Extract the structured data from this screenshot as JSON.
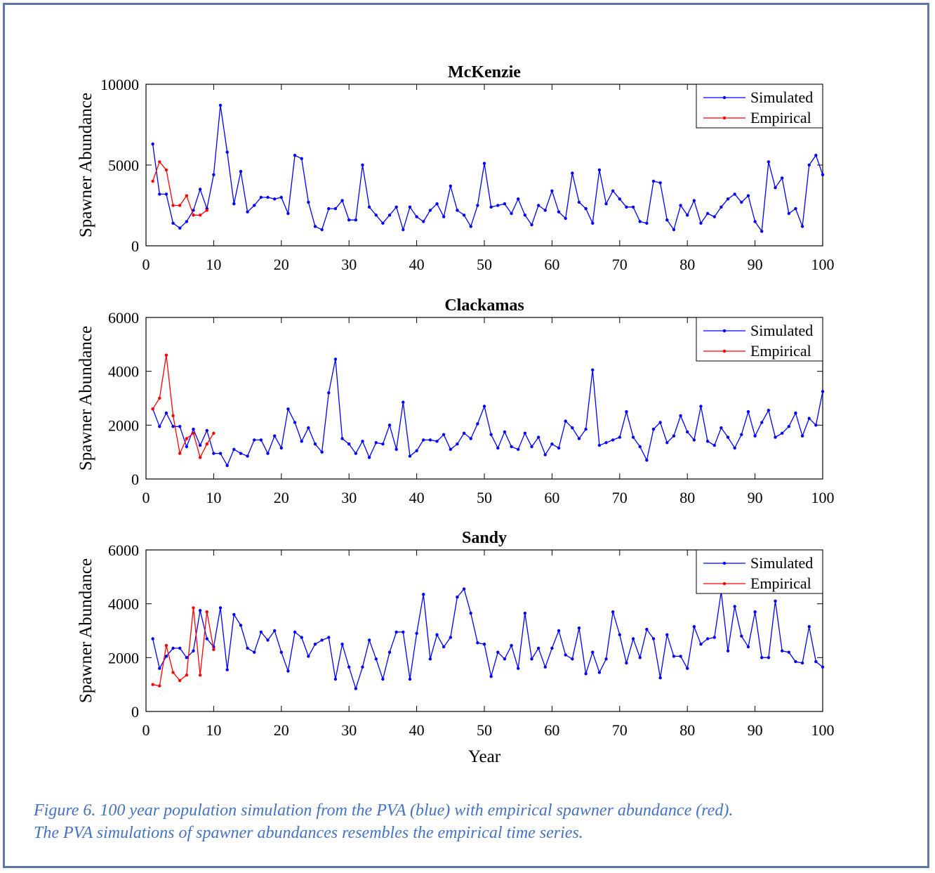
{
  "caption": {
    "line1": "Figure 6.  100 year population simulation from the PVA (blue) with empirical spawner abundance (red).",
    "line2": "The PVA simulations of spawner abundances resembles the empirical time series."
  },
  "colors": {
    "simulated": "#0000ff",
    "empirical": "#ff0000",
    "frame": "#5a76aa",
    "caption": "#4472c4"
  },
  "chart_data": [
    {
      "type": "line",
      "title": "McKenzie",
      "ylabel": "Spawner Abundance",
      "xlabel": "",
      "xlim": [
        0,
        100
      ],
      "ylim": [
        0,
        10000
      ],
      "xticks": [
        0,
        10,
        20,
        30,
        40,
        50,
        60,
        70,
        80,
        90,
        100
      ],
      "yticks": [
        0,
        5000,
        10000
      ],
      "legend": "top-right",
      "series": [
        {
          "name": "Simulated",
          "color": "#0000ff",
          "x": [
            1,
            2,
            3,
            4,
            5,
            6,
            7,
            8,
            9,
            10,
            11,
            12,
            13,
            14,
            15,
            16,
            17,
            18,
            19,
            20,
            21,
            22,
            23,
            24,
            25,
            26,
            27,
            28,
            29,
            30,
            31,
            32,
            33,
            34,
            35,
            36,
            37,
            38,
            39,
            40,
            41,
            42,
            43,
            44,
            45,
            46,
            47,
            48,
            49,
            50,
            51,
            52,
            53,
            54,
            55,
            56,
            57,
            58,
            59,
            60,
            61,
            62,
            63,
            64,
            65,
            66,
            67,
            68,
            69,
            70,
            71,
            72,
            73,
            74,
            75,
            76,
            77,
            78,
            79,
            80,
            81,
            82,
            83,
            84,
            85,
            86,
            87,
            88,
            89,
            90,
            91,
            92,
            93,
            94,
            95,
            96,
            97,
            98,
            99,
            100
          ],
          "y": [
            6300,
            3200,
            3200,
            1400,
            1100,
            1500,
            2200,
            3500,
            2300,
            4400,
            8700,
            5800,
            2600,
            4600,
            2100,
            2500,
            3000,
            3000,
            2900,
            3000,
            2000,
            5600,
            5400,
            2700,
            1200,
            1000,
            2300,
            2300,
            2800,
            1600,
            1600,
            5000,
            2400,
            1900,
            1400,
            1900,
            2400,
            1000,
            2400,
            1800,
            1500,
            2200,
            2600,
            1800,
            3700,
            2200,
            1900,
            1200,
            2500,
            5100,
            2400,
            2500,
            2600,
            2000,
            2900,
            1900,
            1300,
            2500,
            2200,
            3400,
            2100,
            1700,
            4500,
            2700,
            2300,
            1400,
            4700,
            2600,
            3400,
            2900,
            2400,
            2400,
            1500,
            1400,
            4000,
            3900,
            1600,
            1000,
            2500,
            1900,
            2800,
            1400,
            2000,
            1800,
            2400,
            2900,
            3200,
            2700,
            3100,
            1500,
            900,
            5200,
            3600,
            4200,
            2000,
            2300,
            1200,
            5000,
            5600,
            4400
          ]
        },
        {
          "name": "Empirical",
          "color": "#ff0000",
          "x": [
            1,
            2,
            3,
            4,
            5,
            6,
            7,
            8,
            9
          ],
          "y": [
            4000,
            5200,
            4700,
            2500,
            2500,
            3100,
            1900,
            1900,
            2200
          ]
        }
      ]
    },
    {
      "type": "line",
      "title": "Clackamas",
      "ylabel": "Spawner Abundance",
      "xlabel": "",
      "xlim": [
        0,
        100
      ],
      "ylim": [
        0,
        6000
      ],
      "xticks": [
        0,
        10,
        20,
        30,
        40,
        50,
        60,
        70,
        80,
        90,
        100
      ],
      "yticks": [
        0,
        2000,
        4000,
        6000
      ],
      "legend": "top-right",
      "series": [
        {
          "name": "Simulated",
          "color": "#0000ff",
          "x": [
            1,
            2,
            3,
            4,
            5,
            6,
            7,
            8,
            9,
            10,
            11,
            12,
            13,
            14,
            15,
            16,
            17,
            18,
            19,
            20,
            21,
            22,
            23,
            24,
            25,
            26,
            27,
            28,
            29,
            30,
            31,
            32,
            33,
            34,
            35,
            36,
            37,
            38,
            39,
            40,
            41,
            42,
            43,
            44,
            45,
            46,
            47,
            48,
            49,
            50,
            51,
            52,
            53,
            54,
            55,
            56,
            57,
            58,
            59,
            60,
            61,
            62,
            63,
            64,
            65,
            66,
            67,
            68,
            69,
            70,
            71,
            72,
            73,
            74,
            75,
            76,
            77,
            78,
            79,
            80,
            81,
            82,
            83,
            84,
            85,
            86,
            87,
            88,
            89,
            90,
            91,
            92,
            93,
            94,
            95,
            96,
            97,
            98,
            99,
            100
          ],
          "y": [
            2600,
            1950,
            2450,
            1950,
            1950,
            1200,
            1850,
            1250,
            1800,
            950,
            950,
            500,
            1100,
            950,
            850,
            1450,
            1450,
            950,
            1600,
            1150,
            2600,
            2100,
            1400,
            1900,
            1300,
            1000,
            3200,
            4450,
            1500,
            1300,
            950,
            1400,
            800,
            1350,
            1300,
            2000,
            1100,
            2850,
            850,
            1050,
            1450,
            1450,
            1400,
            1650,
            1100,
            1300,
            1700,
            1500,
            2050,
            2700,
            1650,
            1150,
            1750,
            1200,
            1100,
            1700,
            1200,
            1550,
            900,
            1300,
            1150,
            2150,
            1900,
            1500,
            1850,
            4050,
            1250,
            1350,
            1450,
            1550,
            2500,
            1550,
            1200,
            700,
            1850,
            2100,
            1350,
            1600,
            2350,
            1750,
            1450,
            2700,
            1400,
            1250,
            1900,
            1550,
            1150,
            1650,
            2500,
            1600,
            2100,
            2550,
            1550,
            1700,
            1950,
            2450,
            1600,
            2250,
            2000,
            3250
          ]
        },
        {
          "name": "Empirical",
          "color": "#ff0000",
          "x": [
            1,
            2,
            3,
            4,
            5,
            6,
            7,
            8,
            9,
            10
          ],
          "y": [
            2600,
            3000,
            4600,
            2350,
            950,
            1500,
            1700,
            800,
            1300,
            1700
          ]
        }
      ]
    },
    {
      "type": "line",
      "title": "Sandy",
      "ylabel": "Spawner Abundance",
      "xlabel": "Year",
      "xlim": [
        0,
        100
      ],
      "ylim": [
        0,
        6000
      ],
      "xticks": [
        0,
        10,
        20,
        30,
        40,
        50,
        60,
        70,
        80,
        90,
        100
      ],
      "yticks": [
        0,
        2000,
        4000,
        6000
      ],
      "legend": "top-right",
      "series": [
        {
          "name": "Simulated",
          "color": "#0000ff",
          "x": [
            1,
            2,
            3,
            4,
            5,
            6,
            7,
            8,
            9,
            10,
            11,
            12,
            13,
            14,
            15,
            16,
            17,
            18,
            19,
            20,
            21,
            22,
            23,
            24,
            25,
            26,
            27,
            28,
            29,
            30,
            31,
            32,
            33,
            34,
            35,
            36,
            37,
            38,
            39,
            40,
            41,
            42,
            43,
            44,
            45,
            46,
            47,
            48,
            49,
            50,
            51,
            52,
            53,
            54,
            55,
            56,
            57,
            58,
            59,
            60,
            61,
            62,
            63,
            64,
            65,
            66,
            67,
            68,
            69,
            70,
            71,
            72,
            73,
            74,
            75,
            76,
            77,
            78,
            79,
            80,
            81,
            82,
            83,
            84,
            85,
            86,
            87,
            88,
            89,
            90,
            91,
            92,
            93,
            94,
            95,
            96,
            97,
            98,
            99,
            100
          ],
          "y": [
            2700,
            1600,
            2050,
            2350,
            2350,
            2000,
            2250,
            3750,
            2700,
            2400,
            3850,
            1550,
            3600,
            3200,
            2350,
            2200,
            2950,
            2650,
            3000,
            2200,
            1500,
            2950,
            2750,
            2050,
            2500,
            2650,
            2750,
            1200,
            2500,
            1650,
            850,
            1650,
            2650,
            1950,
            1200,
            2200,
            2950,
            2950,
            1200,
            2900,
            4350,
            1950,
            2850,
            2400,
            2750,
            4250,
            4550,
            3650,
            2550,
            2500,
            1300,
            2200,
            1950,
            2450,
            1600,
            3650,
            1950,
            2350,
            1650,
            2350,
            3000,
            2100,
            1950,
            3100,
            1400,
            2200,
            1450,
            1950,
            3700,
            2850,
            1800,
            2700,
            2000,
            3050,
            2700,
            1250,
            2850,
            2050,
            2050,
            1600,
            3150,
            2500,
            2700,
            2750,
            4450,
            2250,
            3900,
            2800,
            2400,
            3700,
            2000,
            2000,
            4100,
            2250,
            2200,
            1850,
            1800,
            3150,
            1850,
            1650
          ]
        },
        {
          "name": "Empirical",
          "color": "#ff0000",
          "x": [
            1,
            2,
            3,
            4,
            5,
            6,
            7,
            8,
            9,
            10
          ],
          "y": [
            1000,
            950,
            2450,
            1450,
            1150,
            1350,
            3850,
            1350,
            3700,
            2300
          ]
        }
      ]
    }
  ]
}
